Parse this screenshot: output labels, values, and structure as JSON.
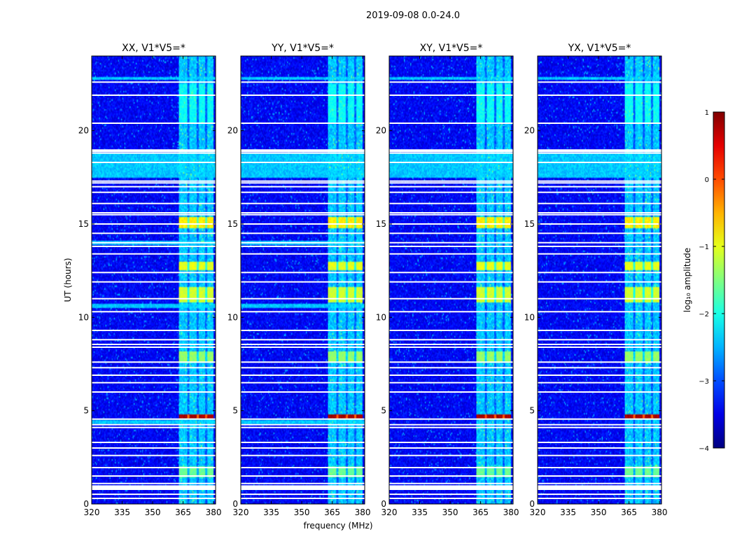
{
  "chart_data": {
    "type": "heatmap",
    "suptitle": "2019-09-08 0.0-24.0",
    "xlabel": "frequency (MHz)",
    "ylabel": "UT (hours)",
    "xlim": [
      320,
      381
    ],
    "ylim": [
      0,
      24
    ],
    "xticks": [
      320,
      335,
      350,
      365,
      380
    ],
    "yticks": [
      0,
      5,
      10,
      15,
      20
    ],
    "colorbar": {
      "label": "log₁₀ amplitude",
      "range": [
        -4,
        1
      ],
      "ticks": [
        "1",
        "0",
        "−1",
        "−2",
        "−3",
        "−4"
      ],
      "colormap": "jet"
    },
    "panels": [
      {
        "title": "XX, V1*V5=*"
      },
      {
        "title": "YY, V1*V5=*"
      },
      {
        "title": "XY, V1*V5=*"
      },
      {
        "title": "YX, V1*V5=*"
      }
    ],
    "structure": {
      "background_level": -3.4,
      "bright_band_mhz": [
        363,
        380
      ],
      "bright_columns_mhz": [
        [
          363,
          367
        ],
        [
          368,
          371.5
        ],
        [
          372.5,
          376
        ],
        [
          377,
          380
        ]
      ],
      "flagged_rows_ut": [
        0.3,
        0.52,
        0.95,
        1.1,
        1.5,
        1.95,
        2.6,
        3.0,
        3.3,
        4.1,
        4.25,
        4.55,
        6.0,
        6.5,
        6.9,
        7.3,
        7.6,
        8.4,
        8.55,
        8.8,
        9.3,
        10.3,
        11.0,
        11.9,
        12.4,
        13.4,
        13.8,
        14.0,
        14.5,
        15.0,
        15.5,
        15.6,
        16.1,
        16.7,
        17.0,
        17.2,
        17.3,
        18.3,
        18.8,
        18.9,
        20.4,
        21.9,
        22.6
      ],
      "flagged_gap_ut": [
        [
          0.75,
          1.0
        ],
        [
          18.85,
          19.0
        ]
      ],
      "bright_rows_ut": [
        [
          4.6,
          4.8,
          0.8
        ],
        [
          14.8,
          15.4,
          -0.8
        ],
        [
          12.5,
          13.0,
          -1.0
        ],
        [
          10.8,
          11.6,
          -1.1
        ],
        [
          7.6,
          8.2,
          -1.4
        ],
        [
          1.4,
          2.0,
          -1.6
        ],
        [
          20.4,
          22.5,
          -2.1
        ]
      ],
      "rfi_rows_ut": [
        [
          22.7,
          22.9
        ],
        [
          17.5,
          18.8
        ],
        [
          13.9,
          14.1
        ],
        [
          10.5,
          10.7
        ],
        [
          4.3,
          4.5
        ]
      ]
    }
  }
}
